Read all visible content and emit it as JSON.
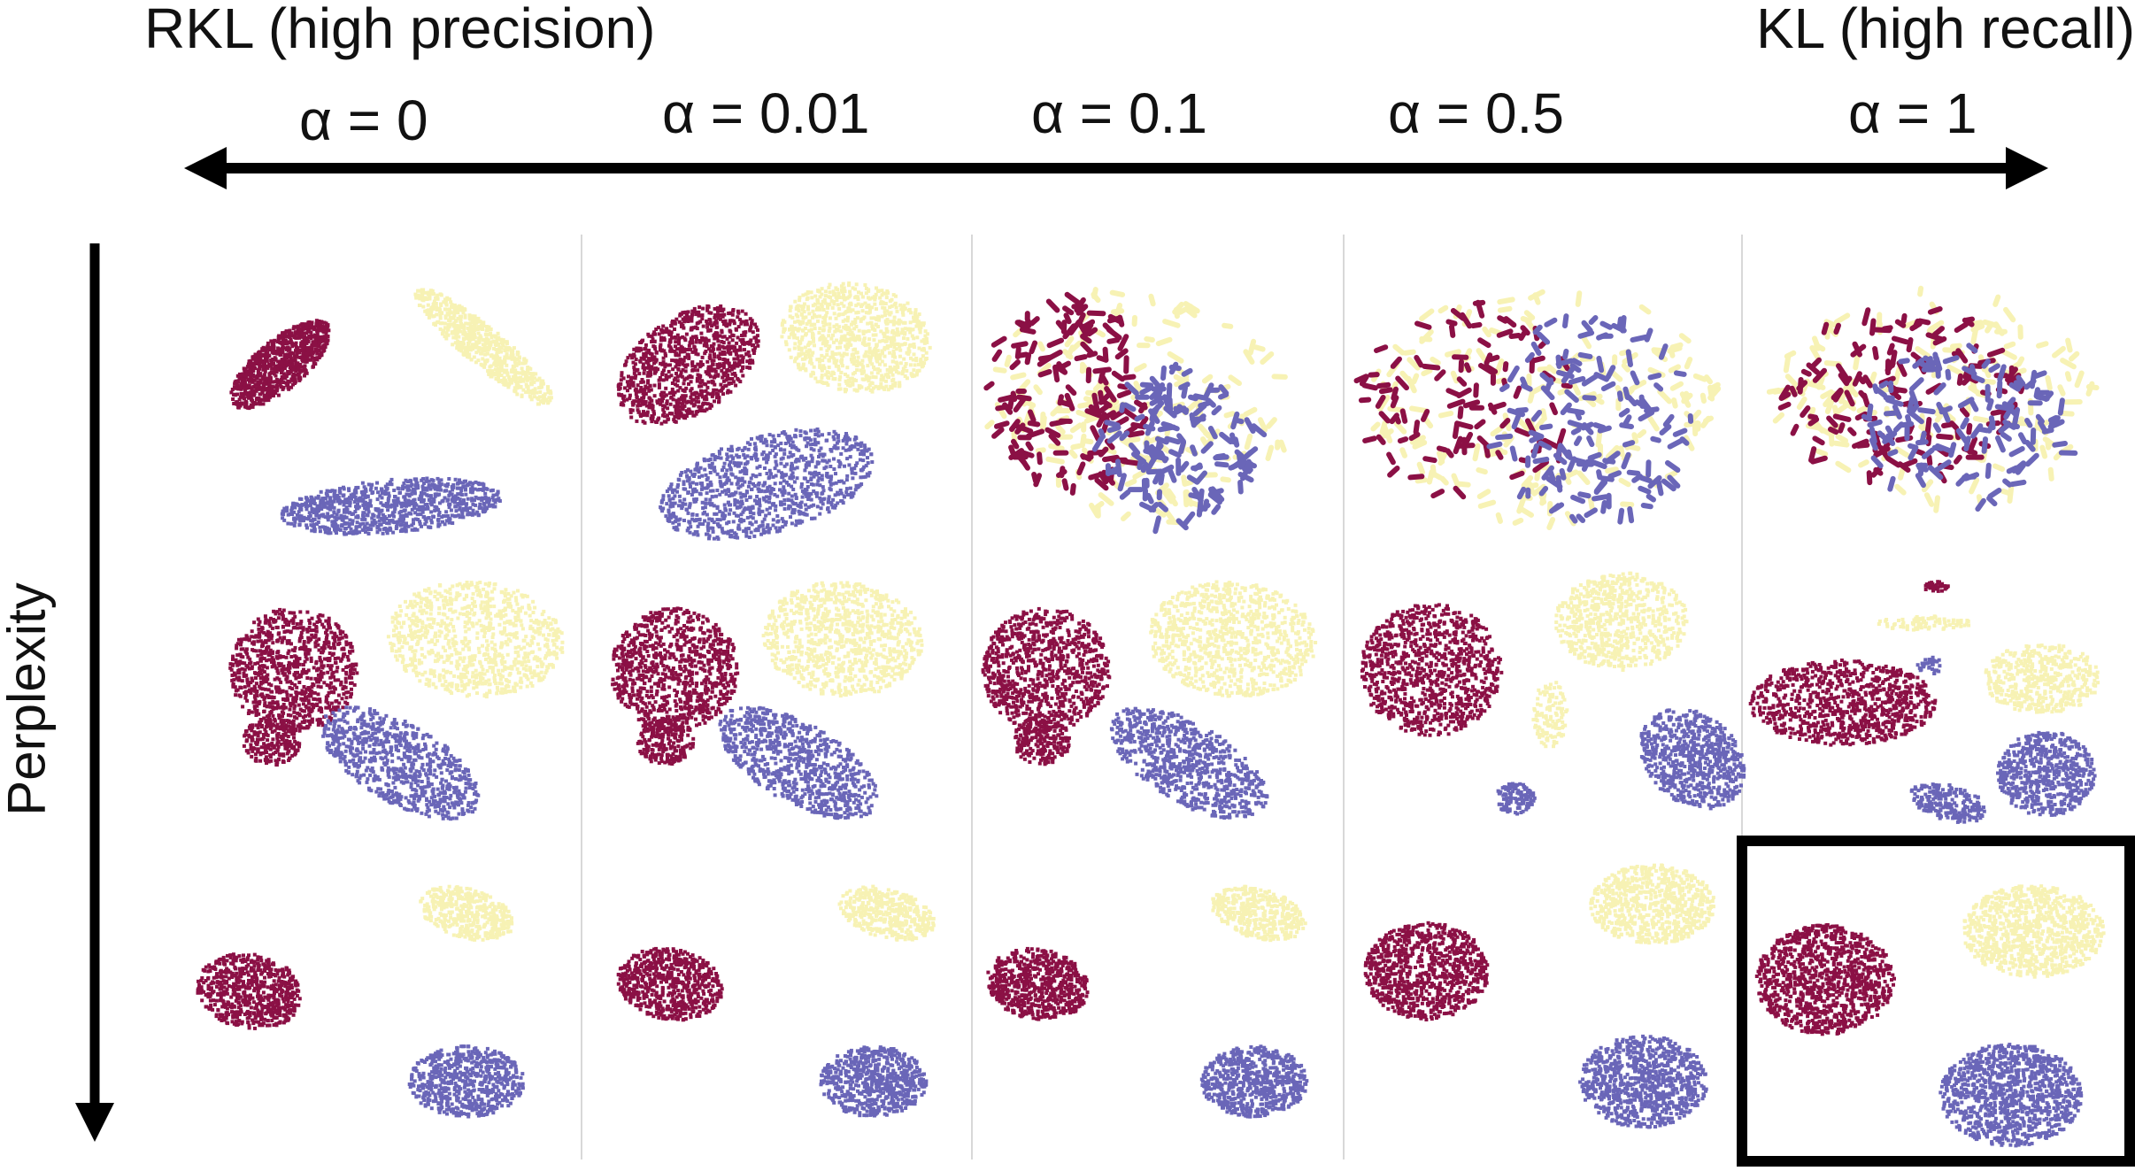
{
  "left_label": "RKL (high precision)",
  "right_label": "KL (high recall)",
  "y_axis_label": "Perplexity",
  "alpha_labels": [
    "α = 0",
    "α = 0.01",
    "α = 0.1",
    "α = 0.5",
    "α = 1"
  ],
  "colors": {
    "cluster_red": "#8b1045",
    "cluster_blue": "#6a66b8",
    "cluster_yellow": "#f7f2b4",
    "arrow": "#000000",
    "separator": "#d8d8d8",
    "highlight_box": "#000000"
  },
  "grid": {
    "columns": 5,
    "rows": 3,
    "highlighted_cell": "row 3, column 5"
  }
}
